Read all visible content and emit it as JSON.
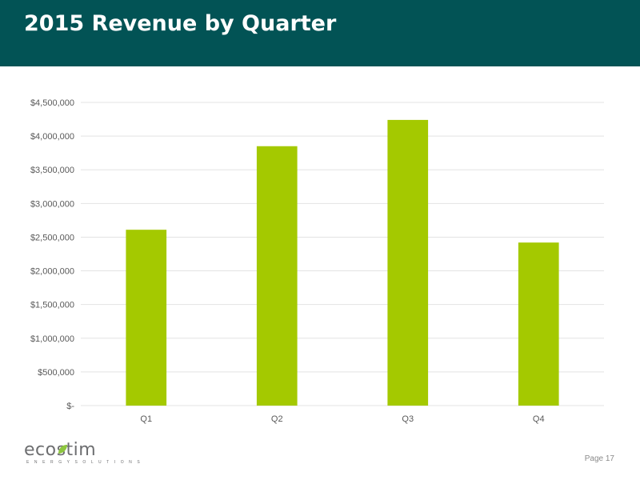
{
  "slide": {
    "title": "2015 Revenue by Quarter",
    "page_label": "Page 17",
    "logo": {
      "wordmark": "ecostim",
      "tagline": "E N E R G Y S O L U T I O N S"
    }
  },
  "colors": {
    "title_bar": "#025355",
    "bar": "#a4c900",
    "grid": "#e3e3e3",
    "axis_text": "#595959",
    "logo_accent": "#8dc63f"
  },
  "chart_data": {
    "type": "bar",
    "categories": [
      "Q1",
      "Q2",
      "Q3",
      "Q4"
    ],
    "values": [
      2610000,
      3850000,
      4240000,
      2420000
    ],
    "ylim": [
      0,
      4500000
    ],
    "yticks": [
      0,
      500000,
      1000000,
      1500000,
      2000000,
      2500000,
      3000000,
      3500000,
      4000000,
      4500000
    ],
    "ytick_labels": [
      "$-",
      "$500,000",
      "$1,000,000",
      "$1,500,000",
      "$2,000,000",
      "$2,500,000",
      "$3,000,000",
      "$3,500,000",
      "$4,000,000",
      "$4,500,000"
    ],
    "title": "",
    "xlabel": "",
    "ylabel": "",
    "grid": true,
    "legend": "none"
  }
}
